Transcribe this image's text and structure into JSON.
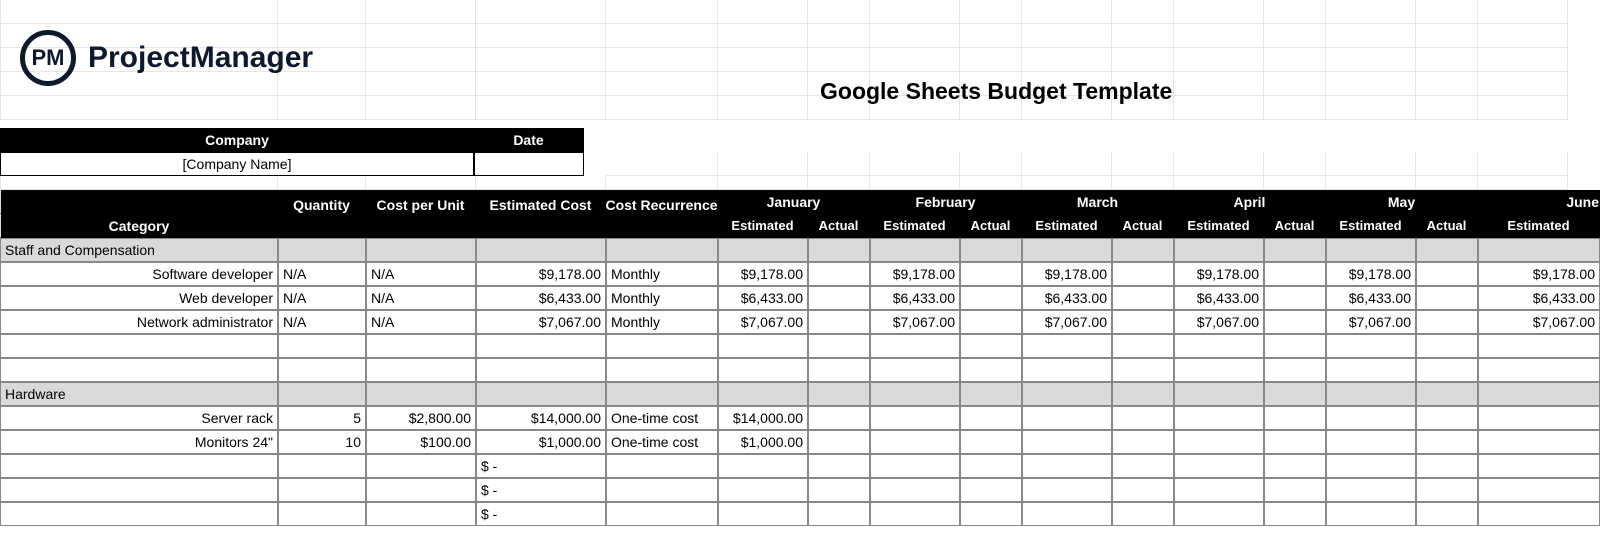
{
  "brand": {
    "logo_initials": "PM",
    "logo_text": "ProjectManager"
  },
  "title": "Google Sheets Budget Template",
  "company_header": {
    "company_label": "Company",
    "date_label": "Date",
    "company_value": "[Company Name]",
    "date_value": ""
  },
  "columns": {
    "category": "Category",
    "quantity": "Quantity",
    "cost_per_unit": "Cost per Unit",
    "estimated_cost": "Estimated Cost",
    "cost_recurrence": "Cost Recurrence"
  },
  "months": [
    {
      "name": "January",
      "sub": [
        "Estimated",
        "Actual"
      ]
    },
    {
      "name": "February",
      "sub": [
        "Estimated",
        "Actual"
      ]
    },
    {
      "name": "March",
      "sub": [
        "Estimated",
        "Actual"
      ]
    },
    {
      "name": "April",
      "sub": [
        "Estimated",
        "Actual"
      ]
    },
    {
      "name": "May",
      "sub": [
        "Estimated",
        "Actual"
      ]
    },
    {
      "name": "June",
      "sub": [
        "Estimated"
      ]
    }
  ],
  "sections": [
    {
      "name": "Staff and Compensation",
      "rows": [
        {
          "category": "Software developer",
          "quantity": "N/A",
          "cost_per_unit": "N/A",
          "estimated_cost": "$9,178.00",
          "recurrence": "Monthly",
          "months": [
            "$9,178.00",
            "",
            "$9,178.00",
            "",
            "$9,178.00",
            "",
            "$9,178.00",
            "",
            "$9,178.00",
            "",
            "$9,178.00"
          ]
        },
        {
          "category": "Web developer",
          "quantity": "N/A",
          "cost_per_unit": "N/A",
          "estimated_cost": "$6,433.00",
          "recurrence": "Monthly",
          "months": [
            "$6,433.00",
            "",
            "$6,433.00",
            "",
            "$6,433.00",
            "",
            "$6,433.00",
            "",
            "$6,433.00",
            "",
            "$6,433.00"
          ]
        },
        {
          "category": "Network administrator",
          "quantity": "N/A",
          "cost_per_unit": "N/A",
          "estimated_cost": "$7,067.00",
          "recurrence": "Monthly",
          "months": [
            "$7,067.00",
            "",
            "$7,067.00",
            "",
            "$7,067.00",
            "",
            "$7,067.00",
            "",
            "$7,067.00",
            "",
            "$7,067.00"
          ]
        }
      ],
      "blank_rows": 2
    },
    {
      "name": "Hardware",
      "rows": [
        {
          "category": "Server rack",
          "quantity": "5",
          "cost_per_unit": "$2,800.00",
          "estimated_cost": "$14,000.00",
          "recurrence": "One-time cost",
          "months": [
            "$14,000.00",
            "",
            "",
            "",
            "",
            "",
            "",
            "",
            "",
            "",
            ""
          ]
        },
        {
          "category": "Monitors 24\"",
          "quantity": "10",
          "cost_per_unit": "$100.00",
          "estimated_cost": "$1,000.00",
          "recurrence": "One-time cost",
          "months": [
            "$1,000.00",
            "",
            "",
            "",
            "",
            "",
            "",
            "",
            "",
            "",
            ""
          ]
        }
      ],
      "tail_rows": [
        {
          "estimated_cost": "$ -"
        },
        {
          "estimated_cost": "$ -"
        },
        {
          "estimated_cost": "$ -"
        }
      ]
    }
  ],
  "styling": {
    "background_color": "#ffffff",
    "header_bg": "#000000",
    "header_text": "#ffffff",
    "section_bg": "#d9d9d9",
    "grid_border": "#888888",
    "light_grid": "#e6e6e6",
    "font_size": 14,
    "title_font_size": 23,
    "logo_text_color": "#0e1a2b"
  }
}
